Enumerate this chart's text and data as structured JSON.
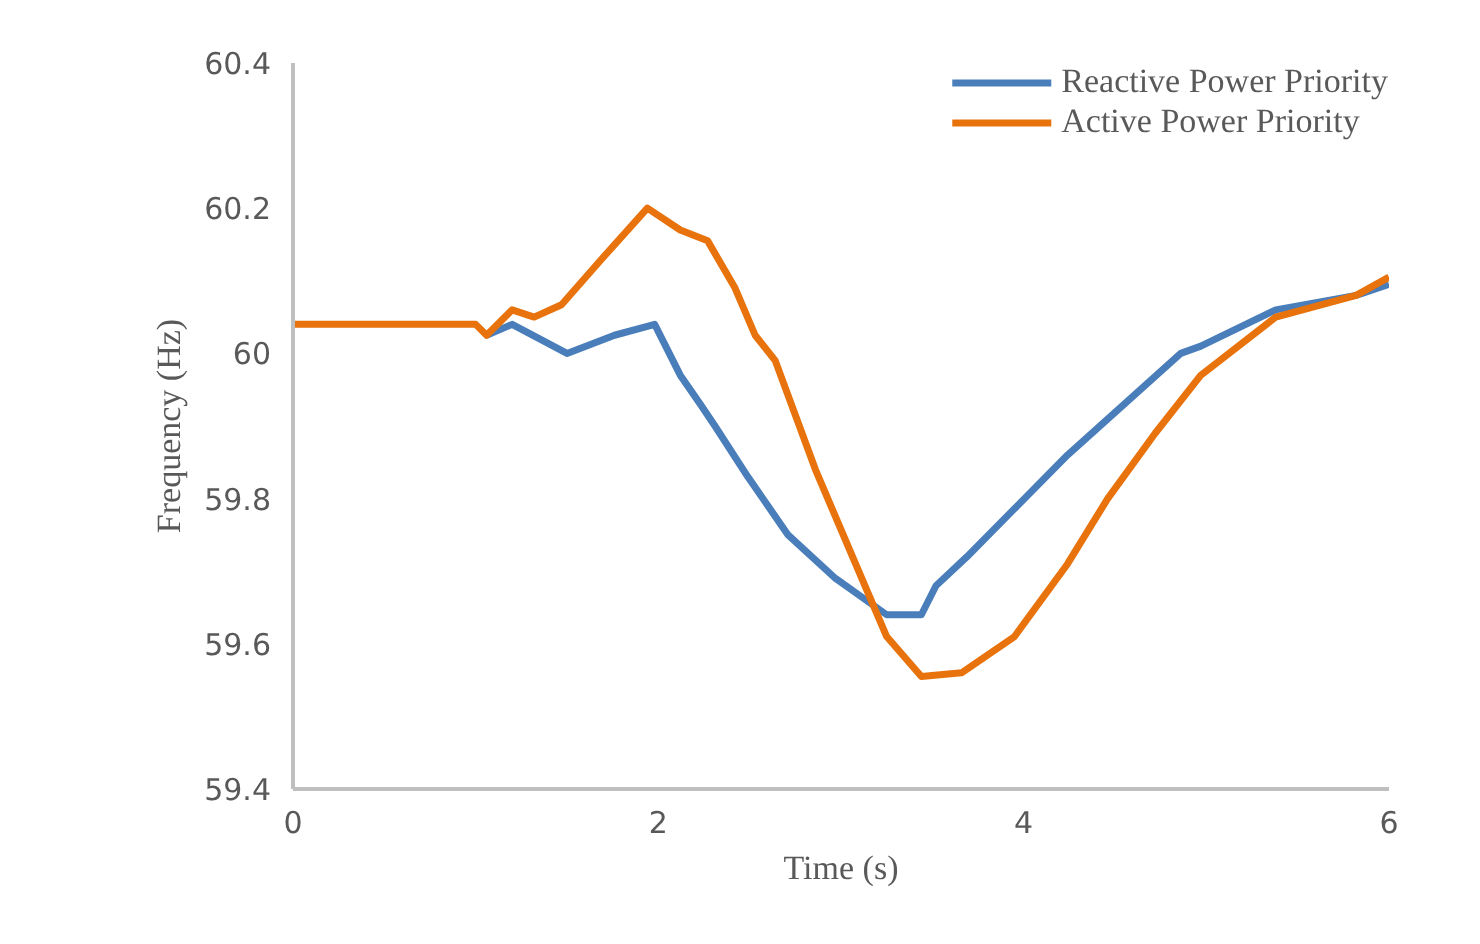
{
  "chart_data": {
    "type": "line",
    "xlabel": "Time (s)",
    "ylabel": "Frequency (Hz)",
    "xlim": [
      0,
      6
    ],
    "xticks": [
      0,
      2,
      4,
      6
    ],
    "ylim": [
      59.4,
      60.4
    ],
    "yticks": [
      59.4,
      59.6,
      59.8,
      60,
      60.2,
      60.4
    ],
    "grid": false,
    "legend": "top right",
    "marker": "none",
    "line_style": "solid",
    "series": [
      {
        "name": "Reactive Power Priority",
        "color": "#4a7ebb",
        "x": [
          1.06,
          1.2,
          1.5,
          1.76,
          1.98,
          2.12,
          2.23,
          2.31,
          2.49,
          2.71,
          2.97,
          3.25,
          3.44,
          3.52,
          3.69,
          4.24,
          4.86,
          4.97,
          5.38,
          5.82,
          6.0
        ],
        "values": [
          60.025,
          60.04,
          60.0,
          60.025,
          60.04,
          59.97,
          59.93,
          59.9,
          59.83,
          59.75,
          59.69,
          59.64,
          59.64,
          59.68,
          59.72,
          59.86,
          60.0,
          60.01,
          60.06,
          60.08,
          60.095
        ]
      },
      {
        "name": "Active Power Priority",
        "color": "#e8720c",
        "x": [
          0,
          1.0,
          1.06,
          1.2,
          1.32,
          1.47,
          1.69,
          1.94,
          2.12,
          2.27,
          2.42,
          2.53,
          2.64,
          2.86,
          3.08,
          3.25,
          3.44,
          3.66,
          3.95,
          4.24,
          4.46,
          4.72,
          4.97,
          5.38,
          5.82,
          6.0
        ],
        "values": [
          60.04,
          60.04,
          60.025,
          60.06,
          60.05,
          60.067,
          60.13,
          60.2,
          60.17,
          60.155,
          60.09,
          60.025,
          59.99,
          59.84,
          59.71,
          59.61,
          59.555,
          59.56,
          59.61,
          59.71,
          59.8,
          59.89,
          59.97,
          60.05,
          60.08,
          60.105
        ]
      }
    ]
  }
}
